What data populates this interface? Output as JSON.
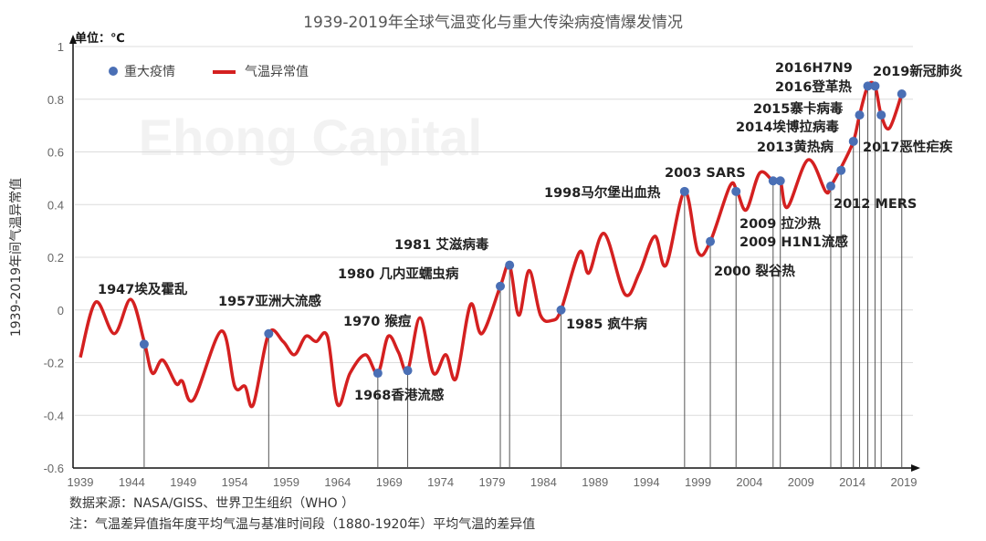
{
  "chart_data": {
    "type": "line",
    "title": "1939-2019年全球气温变化与重大传染病疫情爆发情况",
    "unit_label": "单位：℃",
    "ylabel": "1939-2019年间气温异常值",
    "xlabel": "",
    "xlim": [
      1939,
      2019
    ],
    "ylim": [
      -0.6,
      1
    ],
    "x_ticks": [
      "1939",
      "1944",
      "1949",
      "1954",
      "1959",
      "1964",
      "1969",
      "1974",
      "1979",
      "1984",
      "1989",
      "1994",
      "1999",
      "2004",
      "2009",
      "2014",
      "2019"
    ],
    "y_ticks": [
      "1",
      "0.8",
      "0.6",
      "0.4",
      "0.2",
      "0",
      "-0.2",
      "-0.4",
      "-0.6"
    ],
    "grid": true,
    "legend_position": "top-left",
    "legend": {
      "events": "重大疫情",
      "temperature": "气温异常值"
    },
    "colors": {
      "temperature": "#d42020",
      "events": "#4a6fb5",
      "dropline": "#555555"
    },
    "watermark": "Ehong Capital",
    "series": [
      {
        "name": "气温异常值",
        "x": [
          1939,
          1940.5,
          1942.3,
          1943.9,
          1945.2,
          1946,
          1947,
          1948.3,
          1948.9,
          1950,
          1952.7,
          1954,
          1955,
          1955.8,
          1957.3,
          1958.7,
          1959.8,
          1960.9,
          1961.9,
          1963,
          1964,
          1965.2,
          1966.7,
          1967.9,
          1968.9,
          1969.9,
          1970.8,
          1972,
          1973.3,
          1974.5,
          1975.5,
          1976.9,
          1978,
          1979.8,
          1980.7,
          1981.6,
          1982.6,
          1983.7,
          1984.8,
          1985.7,
          1987.5,
          1988.4,
          1989.9,
          1991.9,
          1993.3,
          1994.8,
          1995.9,
          1997.7,
          1999,
          2000.2,
          2002.1,
          2002.8,
          2003.7,
          2005,
          2006.3,
          2007,
          2007.7,
          2009.7,
          2011.4,
          2011.9,
          2012.9,
          2014.1,
          2014.7,
          2015.5,
          2016.2,
          2016.8,
          2017.6,
          2018.8
        ],
        "y": [
          -0.18,
          0.03,
          -0.09,
          0.04,
          -0.12,
          -0.24,
          -0.19,
          -0.28,
          -0.27,
          -0.34,
          -0.08,
          -0.29,
          -0.29,
          -0.36,
          -0.09,
          -0.12,
          -0.17,
          -0.1,
          -0.12,
          -0.1,
          -0.36,
          -0.24,
          -0.17,
          -0.24,
          -0.1,
          -0.16,
          -0.23,
          -0.03,
          -0.24,
          -0.17,
          -0.26,
          0.02,
          -0.09,
          0.09,
          0.17,
          -0.02,
          0.15,
          -0.02,
          -0.04,
          0.0,
          0.22,
          0.14,
          0.29,
          0.06,
          0.14,
          0.28,
          0.17,
          0.45,
          0.22,
          0.26,
          0.47,
          0.45,
          0.38,
          0.52,
          0.49,
          0.49,
          0.39,
          0.57,
          0.45,
          0.47,
          0.54,
          0.64,
          0.74,
          0.85,
          0.85,
          0.74,
          0.69,
          0.82
        ]
      }
    ],
    "events": [
      {
        "label": "1947埃及霍乱",
        "x": 1945.2,
        "y": -0.13
      },
      {
        "label": "1957亚洲大流感",
        "x": 1957.3,
        "y": -0.09
      },
      {
        "label": "1968香港流感",
        "x": 1967.9,
        "y": -0.24
      },
      {
        "label": "1970 猴痘",
        "x": 1970.8,
        "y": -0.23
      },
      {
        "label": "1980 几内亚蠕虫病",
        "x": 1979.8,
        "y": 0.09
      },
      {
        "label": "1981 艾滋病毒",
        "x": 1980.7,
        "y": 0.17
      },
      {
        "label": "1985 疯牛病",
        "x": 1985.7,
        "y": 0.0
      },
      {
        "label": "1998马尔堡出血热",
        "x": 1997.7,
        "y": 0.45
      },
      {
        "label": "2000 裂谷热",
        "x": 2000.2,
        "y": 0.26
      },
      {
        "label": "2003 SARS",
        "x": 2002.7,
        "y": 0.45
      },
      {
        "label": "2009 拉沙热",
        "x": 2006.3,
        "y": 0.49
      },
      {
        "label": "2009 H1N1流感",
        "x": 2007.0,
        "y": 0.49
      },
      {
        "label": "2012 MERS",
        "x": 2011.9,
        "y": 0.47
      },
      {
        "label": "2013黄热病",
        "x": 2012.9,
        "y": 0.53
      },
      {
        "label": "2014埃博拉病毒",
        "x": 2014.1,
        "y": 0.64
      },
      {
        "label": "2015寨卡病毒",
        "x": 2014.7,
        "y": 0.74
      },
      {
        "label": "2016登革热",
        "x": 2015.5,
        "y": 0.85
      },
      {
        "label": "2016H7N9",
        "x": 2016.2,
        "y": 0.85
      },
      {
        "label": "2017恶性疟疾",
        "x": 2016.8,
        "y": 0.74
      },
      {
        "label": "2019新冠肺炎",
        "x": 2018.8,
        "y": 0.82
      }
    ]
  },
  "footer": {
    "source": "数据来源：NASA/GISS、世界卫生组织（WHO ）",
    "note": "注：气温差异值指年度平均气温与基准时间段（1880-1920年）平均气温的差异值"
  }
}
